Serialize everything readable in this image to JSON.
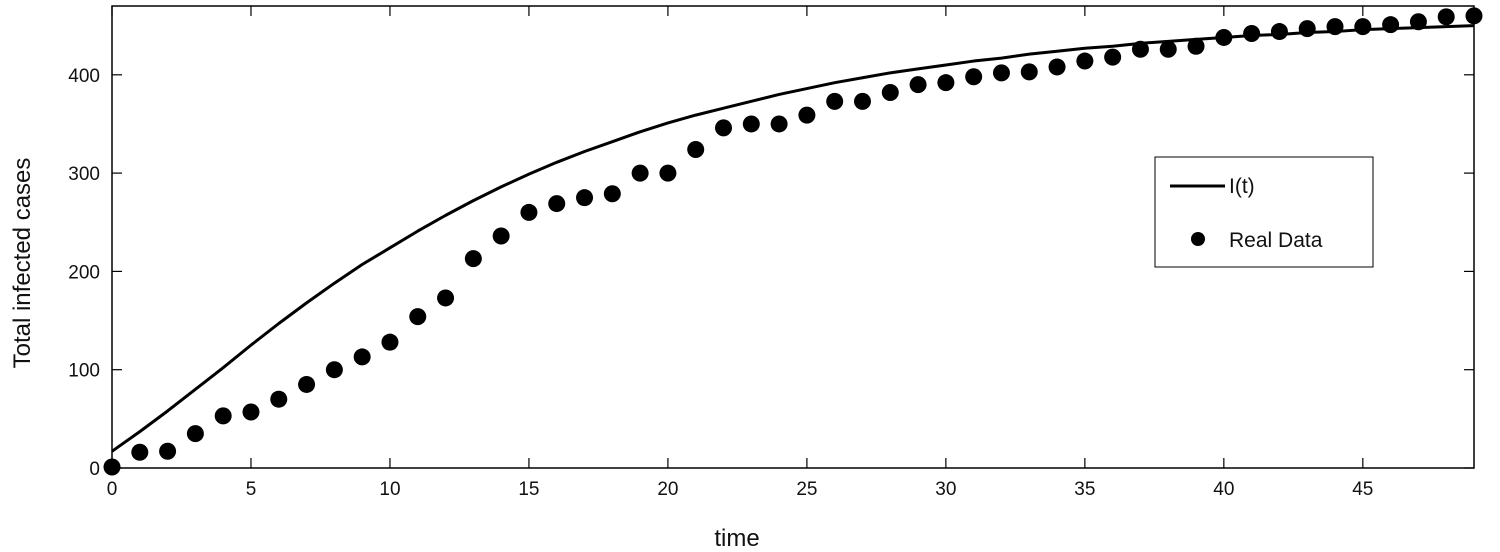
{
  "chart_data": {
    "type": "line",
    "title": "",
    "xlabel": "time",
    "ylabel": "Total infected cases",
    "xlim": [
      0,
      49
    ],
    "ylim": [
      0,
      470
    ],
    "xticks": [
      0,
      5,
      10,
      15,
      20,
      25,
      30,
      35,
      40,
      45
    ],
    "yticks": [
      0,
      100,
      200,
      300,
      400
    ],
    "grid": false,
    "legend_position": "right",
    "series": [
      {
        "name": "I(t)",
        "kind": "line",
        "color": "#000000",
        "x": [
          0,
          1,
          2,
          3,
          4,
          5,
          6,
          7,
          8,
          9,
          10,
          11,
          12,
          13,
          14,
          15,
          16,
          17,
          18,
          19,
          20,
          21,
          22,
          23,
          24,
          25,
          26,
          27,
          28,
          29,
          30,
          31,
          32,
          33,
          34,
          35,
          36,
          37,
          38,
          39,
          40,
          41,
          42,
          43,
          44,
          45,
          46,
          47,
          48,
          49
        ],
        "y": [
          17,
          37,
          58,
          80,
          102,
          125,
          147,
          168,
          188,
          207,
          224,
          241,
          257,
          272,
          286,
          299,
          311,
          322,
          332,
          342,
          351,
          359,
          366,
          373,
          380,
          386,
          392,
          397,
          402,
          406,
          410,
          414,
          417,
          421,
          424,
          427,
          429,
          432,
          434,
          436,
          438,
          440,
          441,
          443,
          444,
          446,
          447,
          448,
          449,
          450
        ]
      },
      {
        "name": "Real Data",
        "kind": "scatter",
        "color": "#000000",
        "x": [
          0,
          1,
          2,
          3,
          4,
          5,
          6,
          7,
          8,
          9,
          10,
          11,
          12,
          13,
          14,
          15,
          16,
          17,
          18,
          19,
          20,
          21,
          22,
          23,
          24,
          25,
          26,
          27,
          28,
          29,
          30,
          31,
          32,
          33,
          34,
          35,
          36,
          37,
          38,
          39,
          40,
          41,
          42,
          43,
          44,
          45,
          46,
          47,
          48,
          49
        ],
        "y": [
          1,
          16,
          17,
          35,
          53,
          57,
          70,
          85,
          100,
          113,
          128,
          154,
          173,
          213,
          236,
          260,
          269,
          275,
          279,
          300,
          300,
          324,
          346,
          350,
          350,
          359,
          373,
          373,
          382,
          390,
          392,
          398,
          402,
          403,
          408,
          414,
          418,
          426,
          426,
          429,
          438,
          442,
          444,
          447,
          449,
          449,
          451,
          454,
          459,
          460
        ]
      }
    ]
  }
}
